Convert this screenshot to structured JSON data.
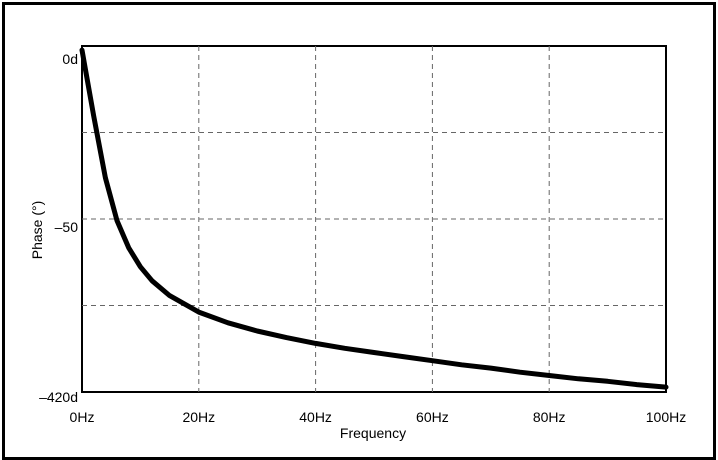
{
  "chart_data": {
    "type": "line",
    "xlabel": "Frequency",
    "ylabel": "Phase (°)",
    "x_ticks": [
      "0Hz",
      "20Hz",
      "40Hz",
      "60Hz",
      "80Hz",
      "100Hz"
    ],
    "y_ticks": [
      "0d",
      "–50",
      "–420d"
    ],
    "x_range": [
      0,
      100
    ],
    "y_range": [
      -420,
      0
    ],
    "grid": true,
    "series": [
      {
        "x": [
          0,
          2,
          4,
          6,
          8,
          10,
          12,
          15,
          20,
          25,
          30,
          35,
          40,
          45,
          50,
          55,
          60,
          65,
          70,
          75,
          80,
          85,
          90,
          95,
          100
        ],
        "y": [
          -5,
          -85,
          -160,
          -212,
          -245,
          -268,
          -285,
          -303,
          -323,
          -336,
          -346,
          -354,
          -361,
          -367,
          -372,
          -377,
          -382,
          -387,
          -391,
          -396,
          -400,
          -404,
          -407,
          -411,
          -414
        ]
      }
    ]
  }
}
